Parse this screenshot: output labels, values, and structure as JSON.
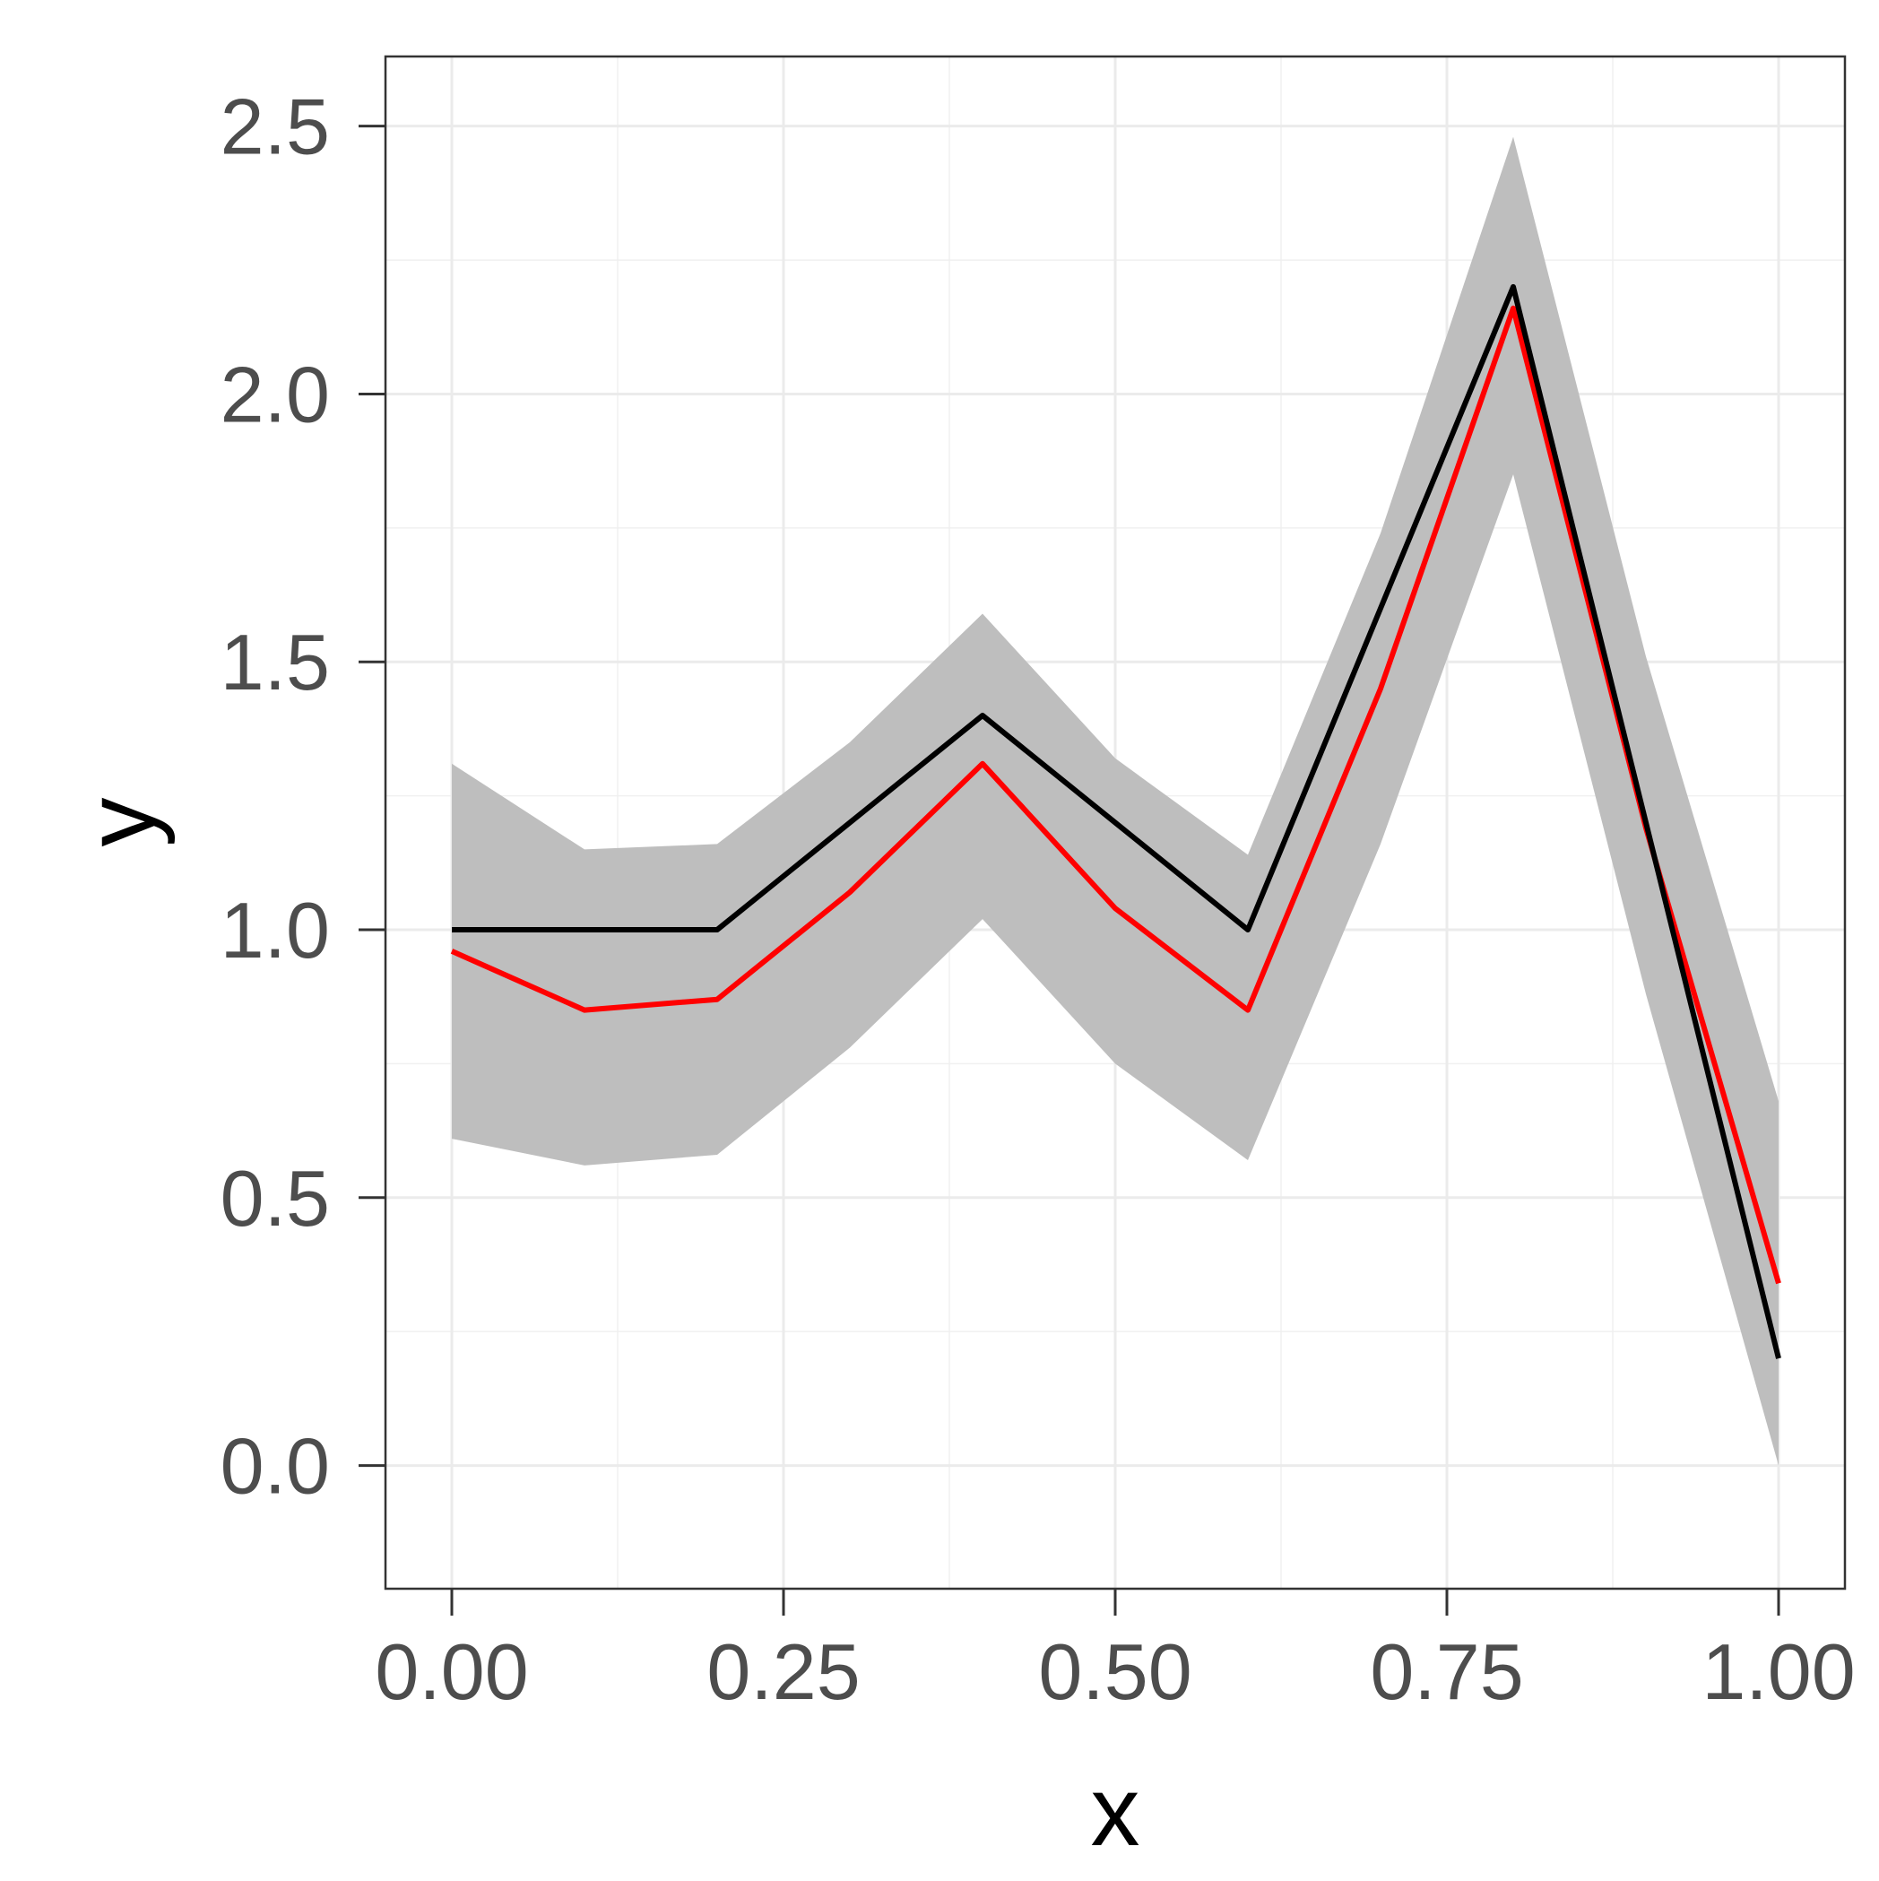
{
  "chart_data": {
    "type": "line",
    "xlabel": "x",
    "ylabel": "y",
    "xlim": [
      -0.05,
      1.05
    ],
    "ylim": [
      -0.23,
      2.63
    ],
    "x_ticks": [
      "0.00",
      "0.25",
      "0.50",
      "0.75",
      "1.00"
    ],
    "x_tick_values": [
      0,
      0.25,
      0.5,
      0.75,
      1.0
    ],
    "y_ticks": [
      "0.0",
      "0.5",
      "1.0",
      "1.5",
      "2.0",
      "2.5"
    ],
    "y_tick_values": [
      0,
      0.5,
      1.0,
      1.5,
      2.0,
      2.5
    ],
    "grid": true,
    "x": [
      0,
      0.1,
      0.2,
      0.3,
      0.4,
      0.5,
      0.6,
      0.7,
      0.8,
      0.9,
      1.0
    ],
    "band": {
      "color": "#bebebe",
      "lower": [
        0.61,
        0.56,
        0.58,
        0.78,
        1.02,
        0.75,
        0.57,
        1.16,
        1.85,
        0.88,
        0.0
      ],
      "upper": [
        1.31,
        1.15,
        1.16,
        1.35,
        1.59,
        1.32,
        1.14,
        1.74,
        2.48,
        1.51,
        0.68
      ]
    },
    "series": [
      {
        "color": "#ff0000",
        "values": [
          0.96,
          0.85,
          0.87,
          1.07,
          1.31,
          1.04,
          0.85,
          1.45,
          2.16,
          1.19,
          0.34
        ]
      },
      {
        "color": "#000000",
        "values": [
          1.0,
          1.0,
          1.0,
          1.2,
          1.4,
          1.2,
          1.0,
          1.6,
          2.2,
          1.2,
          0.2
        ]
      }
    ]
  }
}
